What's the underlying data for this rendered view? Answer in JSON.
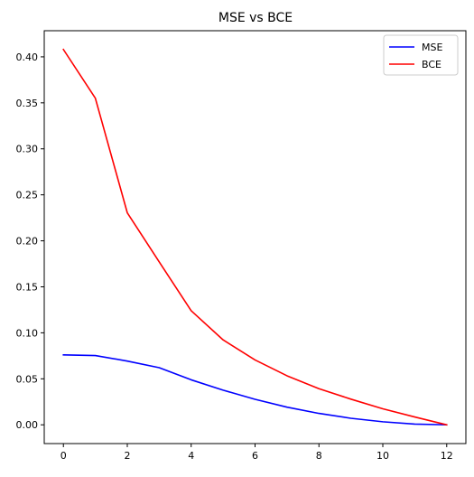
{
  "chart_data": {
    "type": "line",
    "title": "MSE vs BCE",
    "xlabel": "",
    "ylabel": "",
    "x": [
      0,
      1,
      2,
      3,
      4,
      5,
      6,
      7,
      8,
      9,
      10,
      11,
      12
    ],
    "series": [
      {
        "name": "MSE",
        "color": "#0000ff",
        "values": [
          0.076,
          0.0753,
          0.0693,
          0.0621,
          0.0489,
          0.0377,
          0.0277,
          0.0192,
          0.0124,
          0.0071,
          0.0033,
          0.0008,
          0.0
        ]
      },
      {
        "name": "BCE",
        "color": "#ff0000",
        "values": [
          0.408,
          0.355,
          0.2305,
          0.177,
          0.124,
          0.0923,
          0.0705,
          0.0533,
          0.0393,
          0.0279,
          0.0174,
          0.0085,
          0.0
        ]
      }
    ],
    "xlim": [
      -0.6,
      12.6
    ],
    "ylim": [
      -0.0204,
      0.4284
    ],
    "xticks": [
      0,
      2,
      4,
      6,
      8,
      10,
      12
    ],
    "yticks": [
      0.0,
      0.05,
      0.1,
      0.15,
      0.2,
      0.25,
      0.3,
      0.35,
      0.4
    ],
    "xtick_labels": [
      "0",
      "2",
      "4",
      "6",
      "8",
      "10",
      "12"
    ],
    "ytick_labels": [
      "0.00",
      "0.05",
      "0.10",
      "0.15",
      "0.20",
      "0.25",
      "0.30",
      "0.35",
      "0.40"
    ],
    "grid": false,
    "legend": "top-right"
  }
}
